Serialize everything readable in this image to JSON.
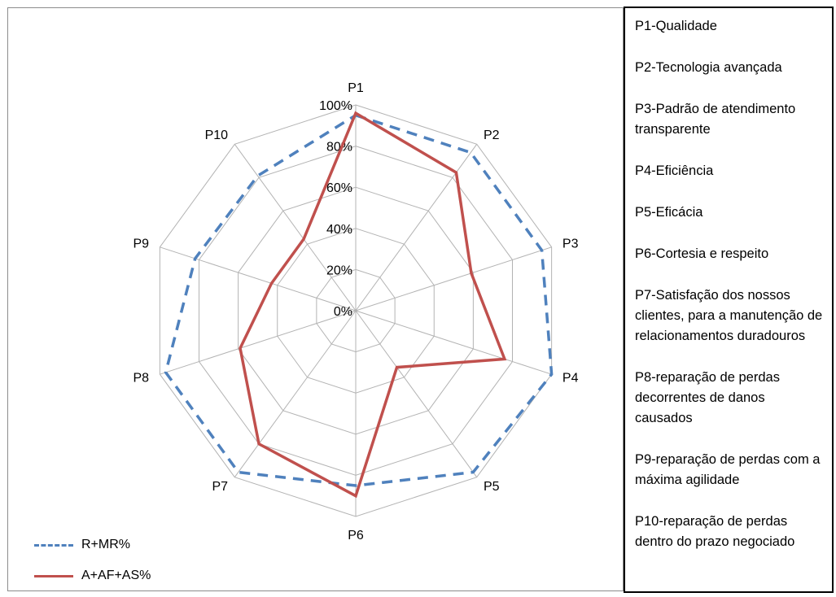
{
  "chart_data": {
    "type": "radar",
    "categories": [
      "P1",
      "P2",
      "P3",
      "P4",
      "P5",
      "P6",
      "P7",
      "P8",
      "P9",
      "P10"
    ],
    "tick_labels": [
      "0%",
      "20%",
      "40%",
      "60%",
      "80%",
      "100%"
    ],
    "ylim": [
      0,
      100
    ],
    "series": [
      {
        "name": "R+MR%",
        "values": [
          95,
          95,
          95,
          100,
          97,
          85,
          97,
          97,
          82,
          81
        ],
        "color": "#4f81bd",
        "style": "dashed"
      },
      {
        "name": "A+AF+AS%",
        "values": [
          96,
          83,
          59,
          76,
          34,
          90,
          80,
          59,
          43,
          43
        ],
        "color": "#c0504d",
        "style": "solid"
      }
    ],
    "legend": "bottom-left"
  },
  "descriptions": [
    "P1-Qualidade",
    "P2-Tecnologia  avançada",
    "P3-Padrão de atendimento transparente",
    "P4-Eficiência",
    "P5-Eficácia",
    "P6-Cortesia e respeito",
    "P7-Satisfação dos nossos clientes, para a manutenção de relacionamentos duradouros",
    "P8-reparação de perdas decorrentes de danos causados",
    "P9-reparação de perdas com a máxima agilidade",
    "P10-reparação de perdas dentro do prazo negociado"
  ]
}
